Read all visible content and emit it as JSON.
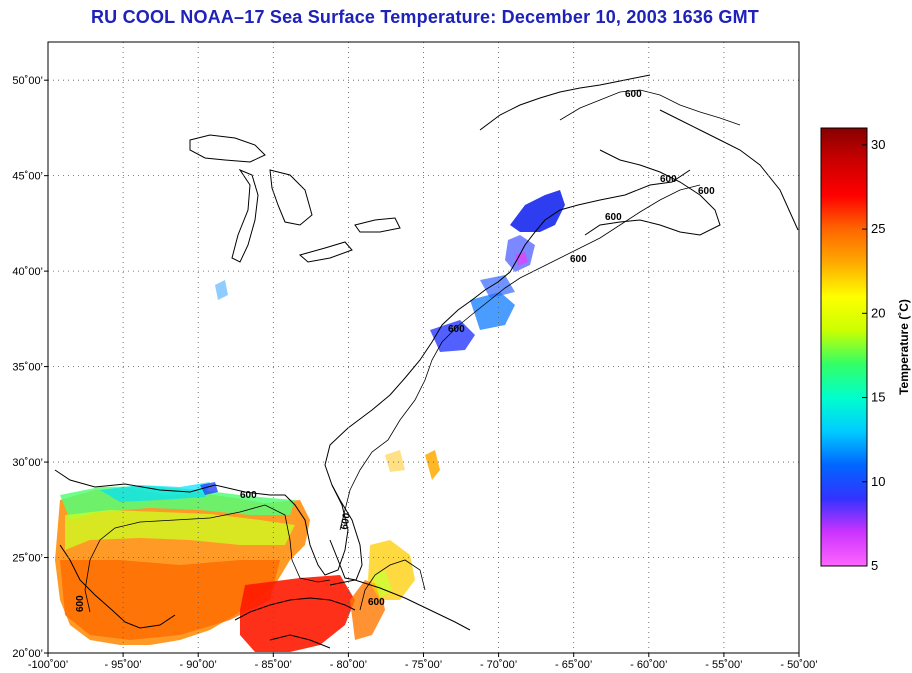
{
  "title": "RU COOL  NOAA–17  Sea Surface Temperature:  December 10, 2003 1636 GMT",
  "map": {
    "lon_range": [
      -100,
      -50
    ],
    "lat_range": [
      20,
      52
    ],
    "lon_ticks": [
      {
        "lon": -100,
        "label": "-100˚00’"
      },
      {
        "lon": -95,
        "label": "- 95˚00’"
      },
      {
        "lon": -90,
        "label": "- 90˚00’"
      },
      {
        "lon": -85,
        "label": "- 85˚00’"
      },
      {
        "lon": -80,
        "label": "- 80˚00’"
      },
      {
        "lon": -75,
        "label": "- 75˚00’"
      },
      {
        "lon": -70,
        "label": "- 70˚00’"
      },
      {
        "lon": -65,
        "label": "- 65˚00’"
      },
      {
        "lon": -60,
        "label": "- 60˚00’"
      },
      {
        "lon": -55,
        "label": "- 55˚00’"
      },
      {
        "lon": -50,
        "label": "- 50˚00’"
      }
    ],
    "lat_ticks": [
      {
        "lat": 50,
        "label": "50˚00’"
      },
      {
        "lat": 45,
        "label": "45˚00’"
      },
      {
        "lat": 40,
        "label": "40˚00’"
      },
      {
        "lat": 35,
        "label": "35˚00’"
      },
      {
        "lat": 30,
        "label": "30˚00’"
      },
      {
        "lat": 25,
        "label": "25˚00’"
      },
      {
        "lat": 20,
        "label": "20˚00’"
      }
    ],
    "contour_label": "600"
  },
  "colorbar": {
    "label": "Temperature (˚C)",
    "range": [
      5,
      31
    ],
    "ticks": [
      {
        "value": 30,
        "label": "30"
      },
      {
        "value": 25,
        "label": "25"
      },
      {
        "value": 20,
        "label": "20"
      },
      {
        "value": 15,
        "label": "15"
      },
      {
        "value": 10,
        "label": "10"
      },
      {
        "value": 5,
        "label": "5"
      }
    ],
    "stops": [
      "#ff66ff",
      "#cc33ff",
      "#3333ff",
      "#0066ff",
      "#00ccff",
      "#00ffcc",
      "#33ff66",
      "#ccff00",
      "#ffff00",
      "#ffaa00",
      "#ff6600",
      "#ff0000",
      "#cc0000",
      "#880000"
    ]
  }
}
